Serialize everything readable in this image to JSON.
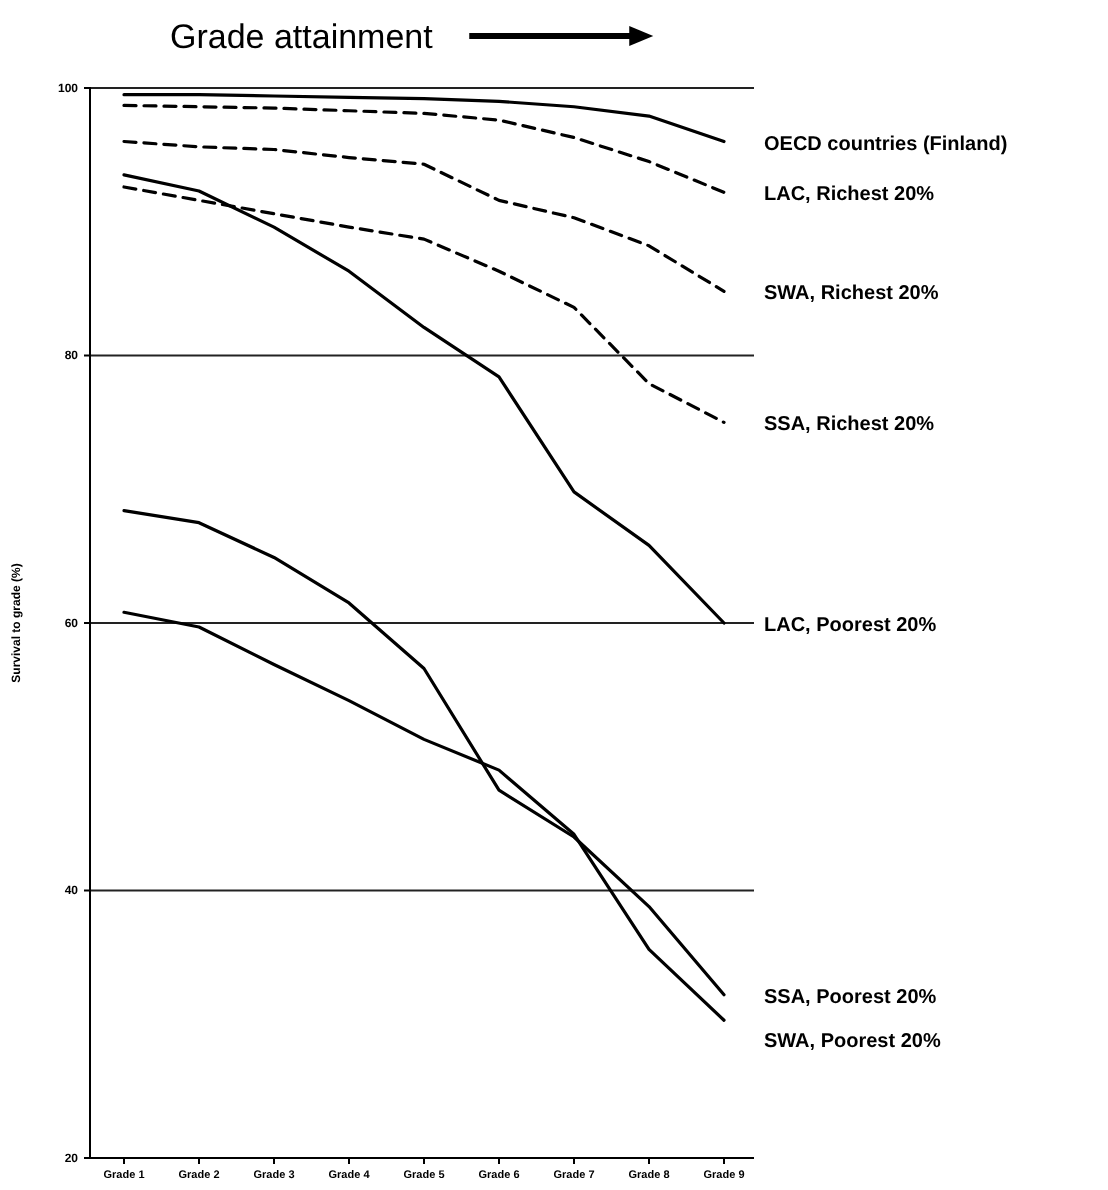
{
  "chart_data": {
    "type": "line",
    "title": "Grade attainment",
    "ylabel": "Survival to grade (%)",
    "categories": [
      "Grade 1",
      "Grade 2",
      "Grade 3",
      "Grade 4",
      "Grade 5",
      "Grade 6",
      "Grade 7",
      "Grade 8",
      "Grade 9"
    ],
    "ylim": [
      20,
      100
    ],
    "yticks": [
      20,
      40,
      60,
      80,
      100
    ],
    "grid": "y",
    "marker": "none",
    "series": [
      {
        "name": "OECD countries (Finland)",
        "color": "#000000",
        "line_style": "solid",
        "values": [
          99.5,
          99.5,
          99.4,
          99.3,
          99.2,
          99,
          98.6,
          97.9,
          96
        ]
      },
      {
        "name": "LAC, Richest 20%",
        "color": "#000000",
        "line_style": "dashed",
        "values": [
          98.7,
          98.6,
          98.5,
          98.3,
          98.1,
          97.6,
          96.3,
          94.5,
          92.2
        ]
      },
      {
        "name": "SWA, Richest 20%",
        "color": "#000000",
        "line_style": "dashed",
        "values": [
          96,
          95.6,
          95.4,
          94.8,
          94.3,
          91.6,
          90.3,
          88.2,
          84.8
        ]
      },
      {
        "name": "SSA, Richest 20%",
        "color": "#000000",
        "line_style": "dashed",
        "values": [
          92.6,
          91.6,
          90.6,
          89.6,
          88.7,
          86.3,
          83.6,
          77.9,
          75
        ]
      },
      {
        "name": "LAC, Poorest 20%",
        "color": "#000000",
        "line_style": "solid",
        "values": [
          93.5,
          92.3,
          89.6,
          86.3,
          82.1,
          78.4,
          69.8,
          65.8,
          60
        ]
      },
      {
        "name": "SSA, Poorest 20%",
        "color": "#000000",
        "line_style": "solid",
        "values": [
          68.4,
          67.5,
          64.9,
          61.5,
          56.6,
          47.5,
          44,
          38.8,
          32.2
        ]
      },
      {
        "name": "SWA, Poorest 20%",
        "color": "#000000",
        "line_style": "solid",
        "values": [
          60.8,
          59.7,
          56.9,
          54.2,
          51.3,
          49,
          44.2,
          35.6,
          30.3
        ]
      }
    ]
  }
}
